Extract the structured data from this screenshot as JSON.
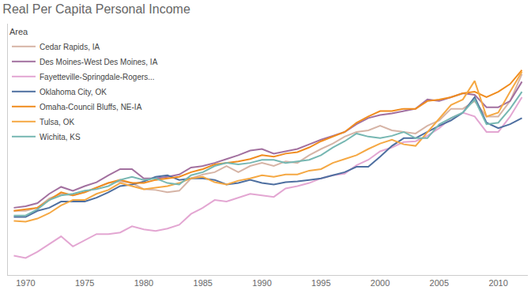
{
  "chart_data": {
    "type": "line",
    "title": "Real Per Capita Personal Income",
    "legend_title": "Area",
    "legend": "top-left",
    "grid": false,
    "tick_labels": "x",
    "xlim": [
      1968.5,
      2012.5
    ],
    "xticks": [
      1970,
      1975,
      1980,
      1985,
      1990,
      1995,
      2000,
      2005,
      2010
    ],
    "ylim": [
      20000,
      52500
    ],
    "yticks": [],
    "x": [
      1969,
      1970,
      1971,
      1972,
      1973,
      1974,
      1975,
      1976,
      1977,
      1978,
      1979,
      1980,
      1981,
      1982,
      1983,
      1984,
      1985,
      1986,
      1987,
      1988,
      1989,
      1990,
      1991,
      1992,
      1993,
      1994,
      1995,
      1996,
      1997,
      1998,
      1999,
      2000,
      2001,
      2002,
      2003,
      2004,
      2005,
      2006,
      2007,
      2008,
      2009,
      2010,
      2011,
      2012
    ],
    "series": [
      {
        "name": "Cedar Rapids, IA",
        "color": "#d6b4a6",
        "values": [
          28300,
          28300,
          28700,
          29900,
          30500,
          30300,
          30700,
          31300,
          31900,
          32100,
          31900,
          31100,
          31000,
          30700,
          30900,
          32500,
          33000,
          33300,
          34100,
          33300,
          34100,
          34500,
          34100,
          34700,
          34500,
          35500,
          36300,
          37000,
          37900,
          38500,
          38700,
          39300,
          38700,
          38500,
          38300,
          39300,
          40000,
          41500,
          41500,
          42500,
          40500,
          40500,
          42500,
          46000
        ]
      },
      {
        "name": "Des Moines-West Des Moines, IA",
        "color": "#a2709f",
        "values": [
          28700,
          28900,
          29300,
          30500,
          31400,
          30900,
          31500,
          32000,
          32900,
          33700,
          33700,
          32500,
          32500,
          32700,
          33000,
          33900,
          34100,
          34500,
          35000,
          35500,
          36100,
          36300,
          35700,
          36000,
          36300,
          36900,
          37500,
          38000,
          38500,
          39500,
          40300,
          40700,
          40900,
          41200,
          41500,
          42700,
          42500,
          43000,
          43500,
          43300,
          41700,
          41700,
          42500,
          45000
        ]
      },
      {
        "name": "Fayetteville-Springdale-Rogers...",
        "color": "#e3a6d2",
        "values": [
          22500,
          22200,
          23000,
          24000,
          25000,
          23700,
          24500,
          25300,
          25300,
          25500,
          26300,
          25900,
          25700,
          26000,
          26500,
          27900,
          28700,
          29700,
          29500,
          30000,
          30500,
          30300,
          30100,
          31200,
          31500,
          31900,
          32500,
          32900,
          33100,
          34200,
          34900,
          36000,
          36500,
          37200,
          37300,
          38000,
          39000,
          40300,
          41000,
          40500,
          38500,
          38500,
          40500,
          43000
        ]
      },
      {
        "name": "Oklahoma City, OK",
        "color": "#4e6fa0",
        "values": [
          27500,
          27500,
          28300,
          28700,
          29500,
          29500,
          29500,
          30000,
          30700,
          31500,
          31700,
          32100,
          32700,
          32900,
          32300,
          32500,
          32500,
          32300,
          31700,
          31900,
          32300,
          31900,
          31700,
          32000,
          32100,
          32300,
          32500,
          32900,
          33300,
          34000,
          34000,
          35300,
          36700,
          37700,
          37700,
          38500,
          39300,
          40000,
          41000,
          43000,
          39700,
          39000,
          39500,
          40300
        ]
      },
      {
        "name": "Omaha-Council Bluffs, NE-IA",
        "color": "#f08c1e",
        "values": [
          28300,
          28500,
          28700,
          29700,
          30700,
          30300,
          30700,
          31300,
          31900,
          32300,
          31900,
          31900,
          32300,
          32500,
          32700,
          33300,
          33700,
          34300,
          34500,
          34700,
          35000,
          35500,
          35300,
          35700,
          35900,
          36500,
          37300,
          37900,
          38500,
          39700,
          40500,
          41200,
          41200,
          41500,
          41500,
          42500,
          42700,
          43000,
          43500,
          43700,
          43000,
          43700,
          44700,
          46500
        ]
      },
      {
        "name": "Tulsa, OK",
        "color": "#f5a843",
        "values": [
          27000,
          26900,
          27300,
          28000,
          29000,
          29700,
          29700,
          30500,
          31000,
          31900,
          31500,
          31100,
          31300,
          31500,
          31900,
          32500,
          32700,
          32000,
          31700,
          32200,
          32500,
          32900,
          32700,
          33000,
          33000,
          33500,
          33700,
          34500,
          35000,
          35500,
          36300,
          37000,
          37500,
          36900,
          36700,
          38500,
          40300,
          42000,
          42700,
          45100,
          40500,
          41000,
          43700,
          46300
        ]
      },
      {
        "name": "Wichita, KS",
        "color": "#76b7b2",
        "values": [
          27700,
          27700,
          28500,
          29700,
          30300,
          30500,
          30900,
          31100,
          31500,
          32300,
          32700,
          32300,
          32500,
          31900,
          31700,
          32900,
          33300,
          34100,
          34500,
          34300,
          34500,
          34900,
          34900,
          34500,
          34700,
          34900,
          35500,
          36500,
          37300,
          38300,
          37900,
          37700,
          38000,
          38500,
          37700,
          37700,
          39500,
          40300,
          41000,
          42700,
          39500,
          39700,
          41500,
          43700
        ]
      }
    ]
  }
}
